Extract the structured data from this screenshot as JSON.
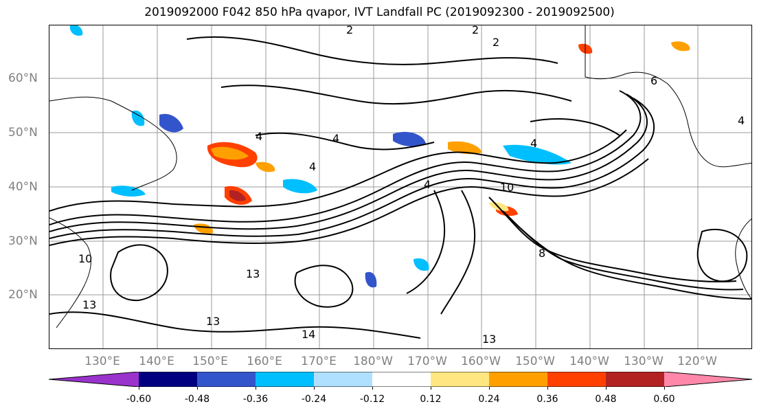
{
  "title": "2019092000 F042 850 hPa qvapor, IVT Landfall PC (2019092300 - 2019092500)",
  "lat_labels": [
    "60°N",
    "50°N",
    "40°N",
    "30°N",
    "20°N"
  ],
  "lon_labels": [
    "130°E",
    "140°E",
    "150°E",
    "160°E",
    "170°E",
    "180°W",
    "170°W",
    "160°W",
    "150°W",
    "140°W",
    "130°W",
    "120°W"
  ],
  "contour_labels": [
    "2",
    "2",
    "2",
    "6",
    "4",
    "4",
    "4",
    "4",
    "4",
    "4",
    "10",
    "10",
    "13",
    "13",
    "13",
    "14",
    "8",
    "13"
  ],
  "colorbar": {
    "ticks": [
      "-0.60",
      "-0.48",
      "-0.36",
      "-0.24",
      "-0.12",
      "0.12",
      "0.24",
      "0.36",
      "0.48",
      "0.60"
    ],
    "colors": [
      "#9933cc",
      "#000080",
      "#3355cc",
      "#00bfff",
      "#b0e0ff",
      "#ffffff",
      "#ffe680",
      "#ffa000",
      "#ff4000",
      "#b22222",
      "#ff88aa"
    ]
  }
}
